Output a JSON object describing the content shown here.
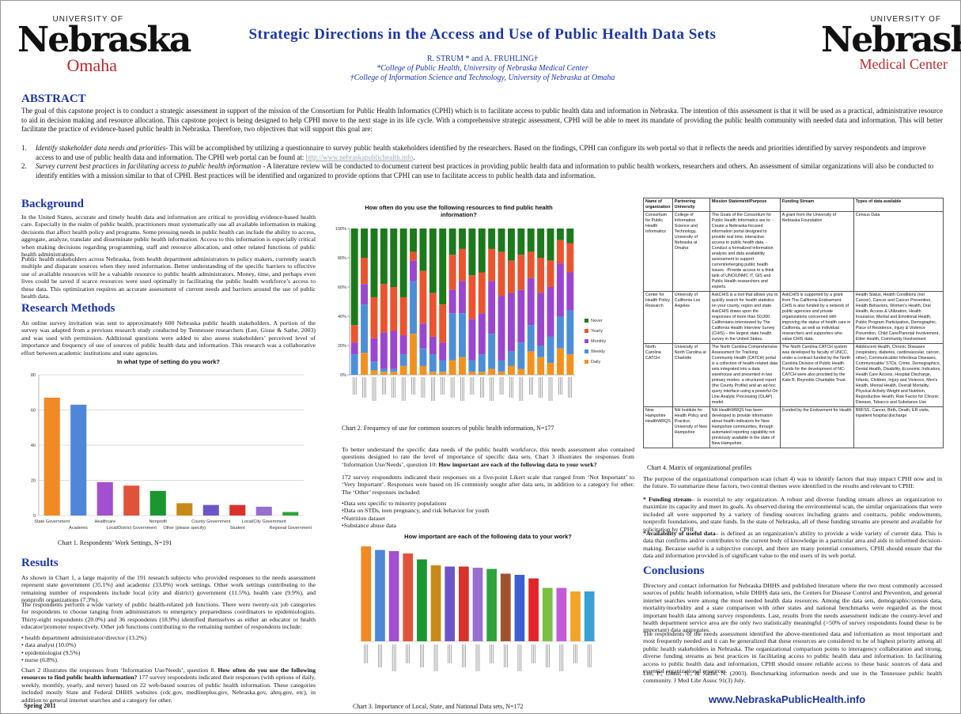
{
  "logos": {
    "left": {
      "university": "UNIVERSITY OF",
      "name": "Nebraska",
      "campus": "Omaha"
    },
    "right": {
      "university": "UNIVERSITY OF",
      "name": "Nebraska",
      "campus": "Medical Center"
    }
  },
  "header": {
    "title": "Strategic Directions in the Access and Use of Public Health Data Sets",
    "authors": "R. STRUM * and A. FRUHLING†",
    "affil1": "*College of Public Health, University of Nebraska Medical Center",
    "affil2": "†College of Information Science and Technology, University of Nebraska at Omaha"
  },
  "abstract": {
    "heading": "ABSTRACT",
    "text": "The goal of this capstone project is to conduct a strategic assessment in support of the mission of the Consortium for Public Health Informatics (CPHI) which is to facilitate access to public health data and information in Nebraska. The intention of this assessment is that it will be used as a practical, administrative resource to aid in decision making and resource allocation. This capstone project is being designed to help CPHI move to the next stage in its life cycle. With a comprehensive strategic assessment, CPHI will be able to meet its mandate of providing the public health community with needed data and information. This will better facilitate the practice of evidence-based public health in Nebraska. Therefore, two objectives that will support this goal are:",
    "obj1_num": "1.",
    "obj1_head": "Identify stakeholder data needs and priorities",
    "obj1_text": "- This will be accomplished by utilizing a questionnaire to survey public health stakeholders identified by the researchers. Based on the findings, CPHI can configure its web portal so that it reflects the needs and priorities identified by survey respondents and improve access to and use of public health data and information. The CPHI web portal can be found at: ",
    "obj1_link": "http://www.nebraskapublichealth.info",
    "obj2_num": "2.",
    "obj2_head": "Survey current best practices in facilitating access to public health information",
    "obj2_text": " - A literature review will be conducted to document current best practices in providing public health data and information to public health workers, researchers and others. An assessment of similar organizations will also be conducted to identify entities with a mission similar to that of CPHI. Best practices will be identified and organized to provide options that CPHI can use to facilitate access to public health data and information."
  },
  "background": {
    "heading": "Background",
    "p1": "In the United States, accurate and timely health data and information are critical to providing evidence-based health care. Especially in the realm of public health, practitioners must systematically use all available information in making decisions that affect health policy and programs. Some pressing needs in public health can include the ability to access, aggregate, analyze, translate and disseminate public health information. Access to this information is especially critical when making decisions regarding programming, staff and resource allocation, and other related functions of public health administration.",
    "p2": "Public health stakeholders across Nebraska, from health department administrators to policy makers, currently search multiple and disparate sources when they need information. Better understanding of the specific barriers to effective use of available resources will be a valuable resource to public health administrators. Money, time, and perhaps even lives could be saved if scarce resources were used optimally in facilitating the public health workforce’s access to these data. This optimization requires an accurate assessment of current needs and barriers around the use of public health data."
  },
  "methods": {
    "heading": "Research Methods",
    "p1": "An online survey invitation was sent to approximately 600 Nebraska public health stakeholders. A portion of the survey was adapted from a previous research study conducted by Tennessee researchers (Lee, Giuse & Sathe, 2003) and was used with permission. Additional questions were added to also assess stakeholders’ perceived level of importance and frequency of use of sources of public health data and information. This research was a collaborative effort between academic institutions and state agencies."
  },
  "chart1": {
    "caption": "Chart 1. Respondents’ Work Settings, N=191"
  },
  "results": {
    "heading": "Results",
    "p1": "As shown in Chart 1, a large majority of the 191 research subjects who provided responses to the needs assessment represent state government (35.1%) and academic (33.0%) work settings. Other work settings contributing to the remaining number of respondents include local (city and district) government (11.5%), health care (9.9%), and nonprofit organizations (7.3%).",
    "p2": "The respondents perform a wide variety of public health-related job functions. There were twenty-six job categories for respondents to choose ranging from administrators to emergency preparedness coordinators to epidemiologists. Thirty-eight respondents (20.0%) and 36 respondents (18.9%) identified themselves as either an educator or health educator/promoter respectively. Other job functions contributing to the remaining number of respondents include:",
    "list": [
      "• health department administrator/director (13.2%)",
      "• data analyst (10.0%)",
      "• epidemiologist (9.5%)",
      "• nurse (6.8%)."
    ],
    "p3a": "Chart 2 illustrates the responses from ‘Information Use/Needs’, question 8. ",
    "p3b": "How often do you use the following resources to find public health information?",
    "p3c": " 177 survey respondents indicated their responses (with options of daily, weekly, monthly, yearly, and never) based on 22 web-based sources of public health information. These categories included mostly State and Federal DHHS websites (cdc.gov, medlineplus.gov, Nebraska.gov, ahrq.gov, etc), in addition to general internet searches and a category for other.",
    "footer": "Spring 2011"
  },
  "chart2": {
    "caption": "Chart 2. Frequency of use for common sources of public health information, N=177"
  },
  "mid": {
    "p1a": "To better understand the specific data needs of the public health workforce, this needs assessment also contained questions designed to rate the level of importance of specific data sets. Chart 3 illustrates the responses from ‘Information Use/Needs’, question 10: ",
    "p1b": "How important are each of the following data to your work?",
    "p2": "172 survey respondents indicated their responses on a five-point Likert scale that ranged from ‘Not Important’ to ‘Very Important’. Responses were based on 16 commonly sought after data sets, in addition to a category for other. The ‘Other’ responses included:",
    "list": [
      "•Data sets specific to minority populations",
      "•Data on STDs, teen pregnancy, and risk behavior for youth",
      "•Nutrition dataset",
      "•Substance abuse data"
    ]
  },
  "chart3": {
    "caption": "Chart 3. Importance of Local, State, and National Data sets, N=172"
  },
  "matrix": {
    "caption": "Chart 4. Matrix of organizational profiles",
    "headers": [
      "Name of organization",
      "Partnering University",
      "Mission Statement/Purpose",
      "Funding Stream",
      "Types of data available"
    ],
    "rows": [
      [
        "Consortium for Public Health Informatics",
        "College of Information Science and Technology, University of Nebraska at Omaha",
        "The Goals of the Consortium for Public Health Informatics are to: -Create a Nebraska-focused information portal designed to provide real time, interactive access to public health data. -Conduct a formalized information analysis and data availability assessment to support current/emerging public health issues. -Provide access to a think tank of UNO/UNMC IT, GIS and Public Health researchers and experts.",
        "A grant from the University of Nebraska Foundation",
        "Census Data"
      ],
      [
        "Center for Health Policy Research",
        "University of California Los Angeles",
        "AskCHIS is a tool that allows you to quickly search for health statistics on your county, region and state. AskCHIS draws upon the responses of more than 50,000 Californians interviewed by The California Health Interview Survey (CHIS) – the largest state health survey in the United States.",
        "AskCHIS is supported by a grant from The California Endowment. CHIS is also funded by a network of public agencies and private organizations concerned with improving the status of health care in California, as well as individual researchers and supporters who value CHIS data.",
        "Health Status, Health Conditions (not Cancer), Cancer and Cancer Prevention, Health Behaviors, Women's Health, Oral Health, Access & Utilization, Health Insurance, Mental and Emotional Health, Public Program Participation, Demographic, Place of Residence, Injury & Violence Prevention, Child Care/Parental Involvement, Elder Health, Community Involvement"
      ],
      [
        "North Carolina CATCH",
        "University of North Carolina at Charlotte",
        "The North Carolina Comprehensive Assessment for Tracking Community Health (CATCH) portal is a collection of health-related data sets integrated into a data warehouse and presented in two primary modes: a structured report (the County Profile) and an ad-hoc query interface using a powerful On Line Analytic Processing (OLAP) model.",
        "The North Carolina CATCH system was developed by faculty of UNCC, under a contract funded by the North Carolina Division of Public Health. Funds for the development of NC-CATCH were also provided by the Kate B. Reynolds Charitable Trust.",
        "Adolescent Health, Chronic Diseases (respiratory, diabetes, cardiovascular, cancer, other), Communicable/ Infectious Diseases, Communicable/ STDs, Crime, Demographics, Dental Health, Disability, Economic Indicators, Health Care Access, Hospital Discharge, Infants, Children, Injury and Violence, Men's Health, Mental Health, Overall Mortality, Physical Activity Weight and Nutrition, Reproductive Health, Risk Factor for Chronic Disease, Tobacco and Substance Use"
      ],
      [
        "New Hampshire HealthWRQS",
        "NH Institute for Health Policy and Practice, University of New Hampshire",
        "NH HealthWRQS has been developed to provide information about health indicators for New Hampshire communities, through automated reporting capability not previously available in the state of New Hampshire.",
        "Funded by the Endowment for Health",
        "BRFSS, Cancer, Birth, Death, ER visits, Inpatient hospital discharge"
      ]
    ]
  },
  "right": {
    "p1": "The purpose of the organizational comparison scan  (chart 4) was to identify factors that may impact CPHI now and in the future. To summarize these factors, two central themes were identified in the results and relevant to CPHI:",
    "b1_head": "* Funding stream",
    "b1_text": "– is essential to any organization. A robust and diverse funding stream allows an organization to maximize its capacity and meet its goals. As observed during the environmental scan, the similar organizations that were included all were supported by a variety of funding sources including grants and contracts, public endowments, nonprofit foundations, and state funds. In the state of Nebraska, all of these funding streams are present and available for solicitation by CPHI.",
    "b2_head": "*Availability of useful data",
    "b2_text": "– is defined as an organization’s ability to provide a wide variety of current data. This is data that confirms and/or contributes to the current body of knowledge in a particular area and aids in informed decision-making. Because useful is a subjective concept, and there are many potential consumers, CPHI should ensure that the data and information provided is of significant value to the end users of its web portal.",
    "conc_heading": "Conclusions",
    "c1": "Directory and contact information for Nebraska DHHS and published literature where the two most commonly accessed sources of public health information, while DHHS data sets, the Centers for Disease Control and Prevention, and general internet searches were among the most needed health data resources. Among the data sets, demographic/census data, mortality/morbidity and a state comparison with other states and national benchmarks were regarded as the most important health data among survey respondents. Last, results from the needs assessment indicate the county-level and health department service area are the only two statistically meaningful (>50% of survey respondents found these to be important) data aggregates.",
    "c2": "The respondents of the needs assessment identified the above-mentioned data and information as most important and most frequently needed and it can be generalized that these resources are considered to be of highest priority among all public health stakeholders in Nebraska. The organizational comparison points to interagency collaboration and strong, diverse funding streams as best practices in facilitating access to public health data and information. In facilitating access to public health data and information, CPHI should ensure reliable access to these basic sources of data and essential organizational resources.",
    "ref": "Lee, P., Giuse, N., & Sathe, N. (2003). Benchmarking information needs and use in the Tennessee public health community. J Med Libr Assoc 91(3) July.",
    "url": "www.NebraskaPublicHealth.info"
  },
  "chart_data": [
    {
      "type": "bar",
      "title": "In what type of setting do you work?",
      "categories": [
        "State Government",
        "Academic",
        "Healthcare",
        "Local/District Government",
        "Nonprofit",
        "Other (please specify)",
        "County Government",
        "Student",
        "Local/City Government",
        "Regional Government"
      ],
      "values": [
        67,
        63,
        19,
        17,
        14,
        7,
        6,
        6,
        5,
        2
      ],
      "colors": [
        "#f08a24",
        "#4f86d8",
        "#a24fd0",
        "#e0533a",
        "#1b9630",
        "#c88a16",
        "#6d55c8",
        "#d9312c",
        "#9a6dd0",
        "#2ea33a"
      ],
      "ylim": [
        0,
        80
      ],
      "yticks": [
        0,
        20,
        40,
        60,
        80
      ]
    },
    {
      "type": "bar",
      "stacked": true,
      "title": "How often do you use the following resources to find public health information?",
      "series_names": [
        "Never",
        "Yearly",
        "Monthly",
        "Weekly",
        "Daily"
      ],
      "series_colors": [
        "#1c7a1c",
        "#e9552f",
        "#9b46cf",
        "#4d8fd6",
        "#f2921e"
      ],
      "yticks": [
        "0%",
        "20%",
        "40%",
        "60%",
        "80%",
        "100%"
      ],
      "rows": [
        [
          66,
          12,
          8,
          14,
          0
        ],
        [
          20,
          18,
          14,
          33,
          15
        ],
        [
          47,
          28,
          16,
          6,
          3
        ],
        [
          38,
          33,
          25,
          2,
          2
        ],
        [
          40,
          30,
          26,
          2,
          2
        ],
        [
          47,
          26,
          13,
          8,
          6
        ],
        [
          16,
          6,
          14,
          36,
          28
        ],
        [
          29,
          36,
          17,
          12,
          6
        ],
        [
          44,
          30,
          12,
          12,
          2
        ],
        [
          52,
          26,
          12,
          8,
          2
        ],
        [
          18,
          24,
          16,
          32,
          10
        ],
        [
          14,
          22,
          22,
          30,
          12
        ],
        [
          32,
          30,
          28,
          8,
          2
        ],
        [
          30,
          28,
          28,
          12,
          2
        ],
        [
          14,
          22,
          36,
          24,
          4
        ],
        [
          16,
          30,
          44,
          8,
          2
        ],
        [
          22,
          22,
          40,
          10,
          6
        ],
        [
          18,
          24,
          36,
          18,
          4
        ],
        [
          16,
          18,
          32,
          18,
          16
        ],
        [
          20,
          24,
          36,
          8,
          12
        ],
        [
          22,
          18,
          34,
          18,
          8
        ],
        [
          8,
          16,
          36,
          22,
          18
        ],
        [
          10,
          20,
          26,
          30,
          14
        ]
      ]
    },
    {
      "type": "bar",
      "title": "How important are each of the following data to your work?",
      "values": [
        4.0,
        3.85,
        3.8,
        3.7,
        3.45,
        3.2,
        3.15,
        3.15,
        3.1,
        3.05,
        2.85,
        2.8,
        2.65,
        2.25,
        2.25,
        2.1,
        2.1
      ],
      "colors": [
        "#f08a24",
        "#4f86d8",
        "#a24fd0",
        "#e0533a",
        "#1b9630",
        "#c88a16",
        "#6d55c8",
        "#d9312c",
        "#9a6dd0",
        "#2ea33a",
        "#a0522d",
        "#3f5fd0",
        "#e0262a",
        "#7ac143",
        "#c55ad8",
        "#f2a32a",
        "#3aa0d6"
      ]
    }
  ]
}
